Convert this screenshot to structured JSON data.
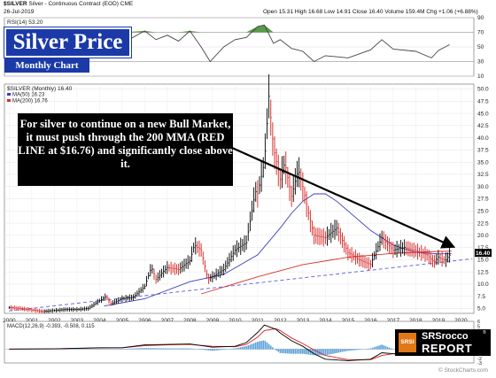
{
  "header": {
    "symbol_line": "$SILVER",
    "symbol_desc": "Silver - Continuous Contract (EOD)",
    "exchange": "CME",
    "date": "26-Jul-2019",
    "ohlc": "Open 15.31   High 16.68   Low 14.91   Close 16.40   Volume 159.4M   Chg +1.06 (+6.88%)",
    "copyright": "© StockCharts.com"
  },
  "title_badge": "Silver Price",
  "subtitle_badge": "Monthly Chart",
  "callout": "For silver to continue on a new Bull Market, it must push through the 200 MMA (RED LINE at $16.76) and significantly close above it.",
  "logo": {
    "box": "SRSI",
    "line1": "SRSrocco",
    "line2": "REPORT",
    "reg": "®"
  },
  "colors": {
    "up": "#000000",
    "down": "#d61f1f",
    "ma50": "#3d3dbb",
    "ma200": "#d9302a",
    "support": "#6b6be0",
    "rsi": "#444444",
    "rsi_fill": "#3b8a2a",
    "macd_hist": "#5a9fd8",
    "badge": "#1b3aa8",
    "price_tag": "#000000"
  },
  "chart_data": [
    {
      "type": "line",
      "panel": "rsi",
      "title": "RSI(14) 53.20",
      "ylim": [
        10,
        90
      ],
      "yticks": [
        "10",
        "30",
        "50",
        "70",
        "90"
      ],
      "x": [
        2000.0,
        2001.0,
        2002.0,
        2003.0,
        2004.0,
        2005.0,
        2006.0,
        2006.5,
        2007.0,
        2007.5,
        2008.0,
        2008.5,
        2008.9,
        2009.5,
        2010.0,
        2010.5,
        2011.0,
        2011.3,
        2011.7,
        2012.0,
        2012.5,
        2013.0,
        2013.5,
        2014.0,
        2015.0,
        2016.0,
        2016.5,
        2017.0,
        2018.0,
        2018.7,
        2019.0,
        2019.5
      ],
      "values": [
        40,
        45,
        48,
        55,
        60,
        55,
        72,
        60,
        66,
        58,
        72,
        50,
        30,
        50,
        60,
        63,
        78,
        80,
        55,
        60,
        48,
        44,
        30,
        38,
        35,
        46,
        60,
        47,
        44,
        35,
        45,
        53.2
      ],
      "overbought": 70,
      "oversold": 30
    },
    {
      "type": "line",
      "panel": "price",
      "title": "$SILVER (Monthly) 16.40",
      "legend": [
        "MA(50) 16.23",
        "MA(200) 16.76"
      ],
      "ylim": [
        5,
        50
      ],
      "yticks": [
        "5.0",
        "7.5",
        "10.0",
        "12.5",
        "15.0",
        "17.5",
        "20.0",
        "22.5",
        "25.0",
        "27.5",
        "30.0",
        "32.5",
        "35.0",
        "37.5",
        "40.0",
        "42.5",
        "45.0",
        "47.5",
        "50.0"
      ],
      "xticks": [
        "2000",
        "2001",
        "2002",
        "2003",
        "2004",
        "2005",
        "2006",
        "2007",
        "2008",
        "2009",
        "2010",
        "2011",
        "2012",
        "2013",
        "2014",
        "2015",
        "2016",
        "2017",
        "2018",
        "2019",
        "2020"
      ],
      "price_x": [
        2000.0,
        2000.5,
        2001.0,
        2001.5,
        2002.0,
        2002.5,
        2003.0,
        2003.5,
        2004.0,
        2004.3,
        2004.5,
        2005.0,
        2005.5,
        2006.0,
        2006.3,
        2006.5,
        2007.0,
        2007.5,
        2008.0,
        2008.2,
        2008.5,
        2008.8,
        2009.0,
        2009.5,
        2010.0,
        2010.5,
        2010.9,
        2011.0,
        2011.3,
        2011.5,
        2011.7,
        2012.0,
        2012.2,
        2012.5,
        2012.8,
        2013.0,
        2013.3,
        2013.5,
        2014.0,
        2014.5,
        2015.0,
        2015.5,
        2016.0,
        2016.5,
        2017.0,
        2017.5,
        2018.0,
        2018.5,
        2018.8,
        2019.0,
        2019.3,
        2019.58
      ],
      "price_y": [
        5.2,
        5.0,
        4.7,
        4.4,
        4.6,
        4.8,
        4.8,
        5.0,
        6.6,
        7.5,
        6.0,
        7.0,
        7.3,
        9.5,
        13.5,
        11.0,
        13.4,
        13.0,
        14.8,
        18.0,
        17.0,
        11.0,
        11.5,
        13.0,
        17.0,
        18.5,
        29.0,
        28.5,
        35.0,
        48.5,
        38.0,
        31.5,
        35.0,
        28.0,
        33.5,
        30.0,
        23.5,
        20.0,
        19.5,
        21.5,
        16.5,
        15.0,
        14.0,
        19.5,
        17.0,
        17.5,
        16.8,
        16.0,
        14.5,
        15.5,
        14.8,
        16.4
      ],
      "ma50_x": [
        2004.2,
        2006.0,
        2008.0,
        2009.5,
        2011.0,
        2012.0,
        2012.5,
        2013.0,
        2013.5,
        2014.0,
        2014.5,
        2015.0,
        2016.0,
        2017.0,
        2018.0,
        2019.0,
        2019.58
      ],
      "ma50_y": [
        5.5,
        7.0,
        10.5,
        12.0,
        16.0,
        21.5,
        24.5,
        27.0,
        28.5,
        28.5,
        27.0,
        25.0,
        21.0,
        18.0,
        16.5,
        16.2,
        16.23
      ],
      "ma200_x": [
        2008.5,
        2011.0,
        2013.0,
        2015.0,
        2017.0,
        2019.0,
        2019.58
      ],
      "ma200_y": [
        8.0,
        11.5,
        14.0,
        15.5,
        16.3,
        16.7,
        16.76
      ],
      "support_x": [
        2000.0,
        2020.5
      ],
      "support_y": [
        4.5,
        15.2
      ],
      "trendline_x": [
        2012.5,
        2019.6
      ],
      "trendline_y": [
        31.0,
        17.8
      ],
      "price_tag": "16.40"
    },
    {
      "type": "line",
      "panel": "macd",
      "title": "MACD(12,26,9) -0.393, -0.508, 0.115",
      "ylim": [
        -3,
        6
      ],
      "yticks": [
        "-3",
        "-2",
        "-1",
        "0",
        "1",
        "2",
        "3",
        "4",
        "5",
        "6"
      ],
      "x": [
        2000.0,
        2002.0,
        2004.0,
        2005.0,
        2006.0,
        2007.0,
        2008.0,
        2009.0,
        2010.0,
        2010.5,
        2011.0,
        2011.3,
        2011.8,
        2012.0,
        2012.5,
        2013.0,
        2013.5,
        2014.0,
        2015.0,
        2016.0,
        2016.5,
        2017.0,
        2018.0,
        2019.0,
        2019.58
      ],
      "macd": [
        0.0,
        0.05,
        0.3,
        0.3,
        0.9,
        1.0,
        1.1,
        0.4,
        0.6,
        1.4,
        3.6,
        5.2,
        4.3,
        3.5,
        1.8,
        0.6,
        -1.0,
        -2.2,
        -2.5,
        -2.2,
        -0.8,
        -1.0,
        -1.4,
        -1.3,
        -0.39
      ],
      "signal": [
        0.0,
        0.04,
        0.25,
        0.28,
        0.75,
        0.9,
        1.0,
        0.6,
        0.5,
        1.0,
        2.6,
        4.0,
        4.4,
        4.0,
        2.4,
        1.2,
        -0.2,
        -1.4,
        -2.3,
        -2.3,
        -1.4,
        -1.0,
        -1.3,
        -1.35,
        -0.51
      ]
    }
  ]
}
